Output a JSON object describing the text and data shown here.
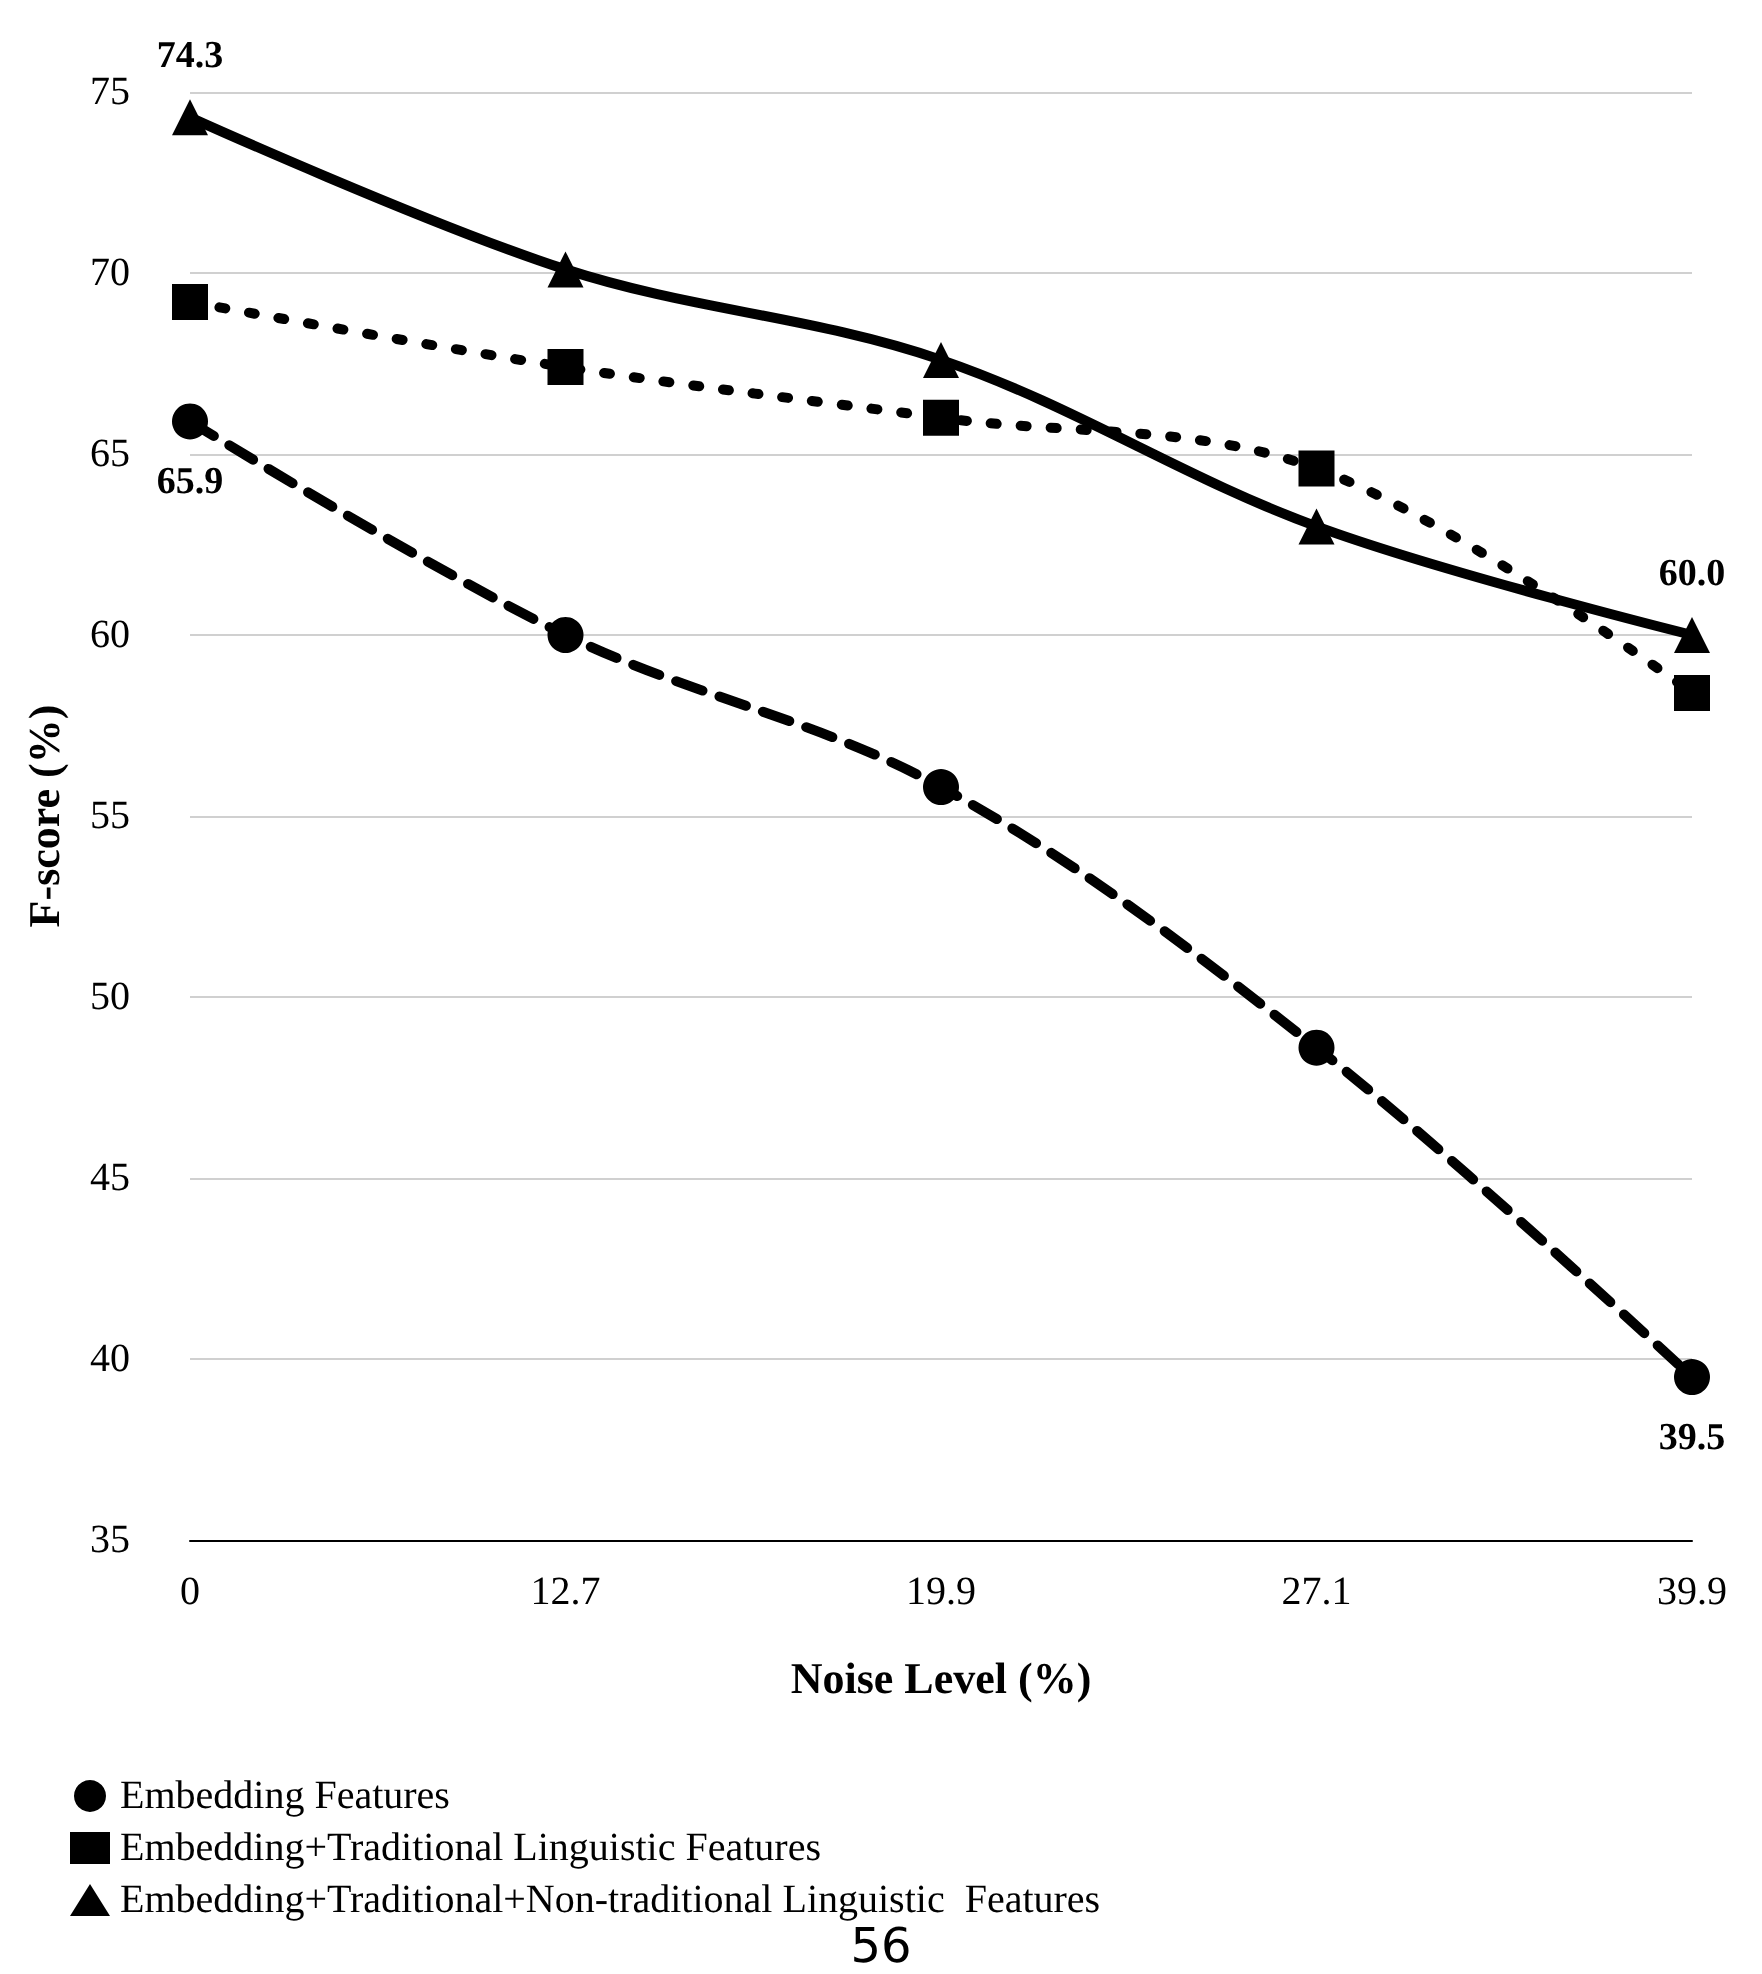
{
  "chart_data": {
    "type": "line",
    "xlabel": "Noise Level (%)",
    "ylabel": "F-score (%)",
    "categories": [
      "0",
      "12.7",
      "19.9",
      "27.1",
      "39.9"
    ],
    "series": [
      {
        "name": "Embedding Features",
        "color": "#000000",
        "marker": "circle",
        "line_style": "dashed",
        "values": [
          65.9,
          60.0,
          55.8,
          48.6,
          39.5
        ],
        "value_labels": [
          "65.9",
          null,
          null,
          null,
          "39.5"
        ]
      },
      {
        "name": "Embedding+Traditional Linguistic Features",
        "color": "#000000",
        "marker": "square",
        "line_style": "dotted",
        "values": [
          69.2,
          67.4,
          66.0,
          64.6,
          58.4
        ],
        "value_labels": [
          null,
          null,
          null,
          null,
          null
        ]
      },
      {
        "name": "Embedding+Traditional+Non-traditional Linguistic  Features",
        "color": "#000000",
        "marker": "triangle",
        "line_style": "solid",
        "values": [
          74.3,
          70.1,
          67.6,
          63.0,
          60.0
        ],
        "value_labels": [
          "74.3",
          null,
          null,
          null,
          "60.0"
        ]
      }
    ],
    "ylim": [
      35,
      75
    ],
    "yticks": [
      35,
      40,
      45,
      50,
      55,
      60,
      65,
      70,
      75
    ],
    "grid": "y",
    "legend": "bottom left",
    "annotations": [
      "56"
    ]
  }
}
